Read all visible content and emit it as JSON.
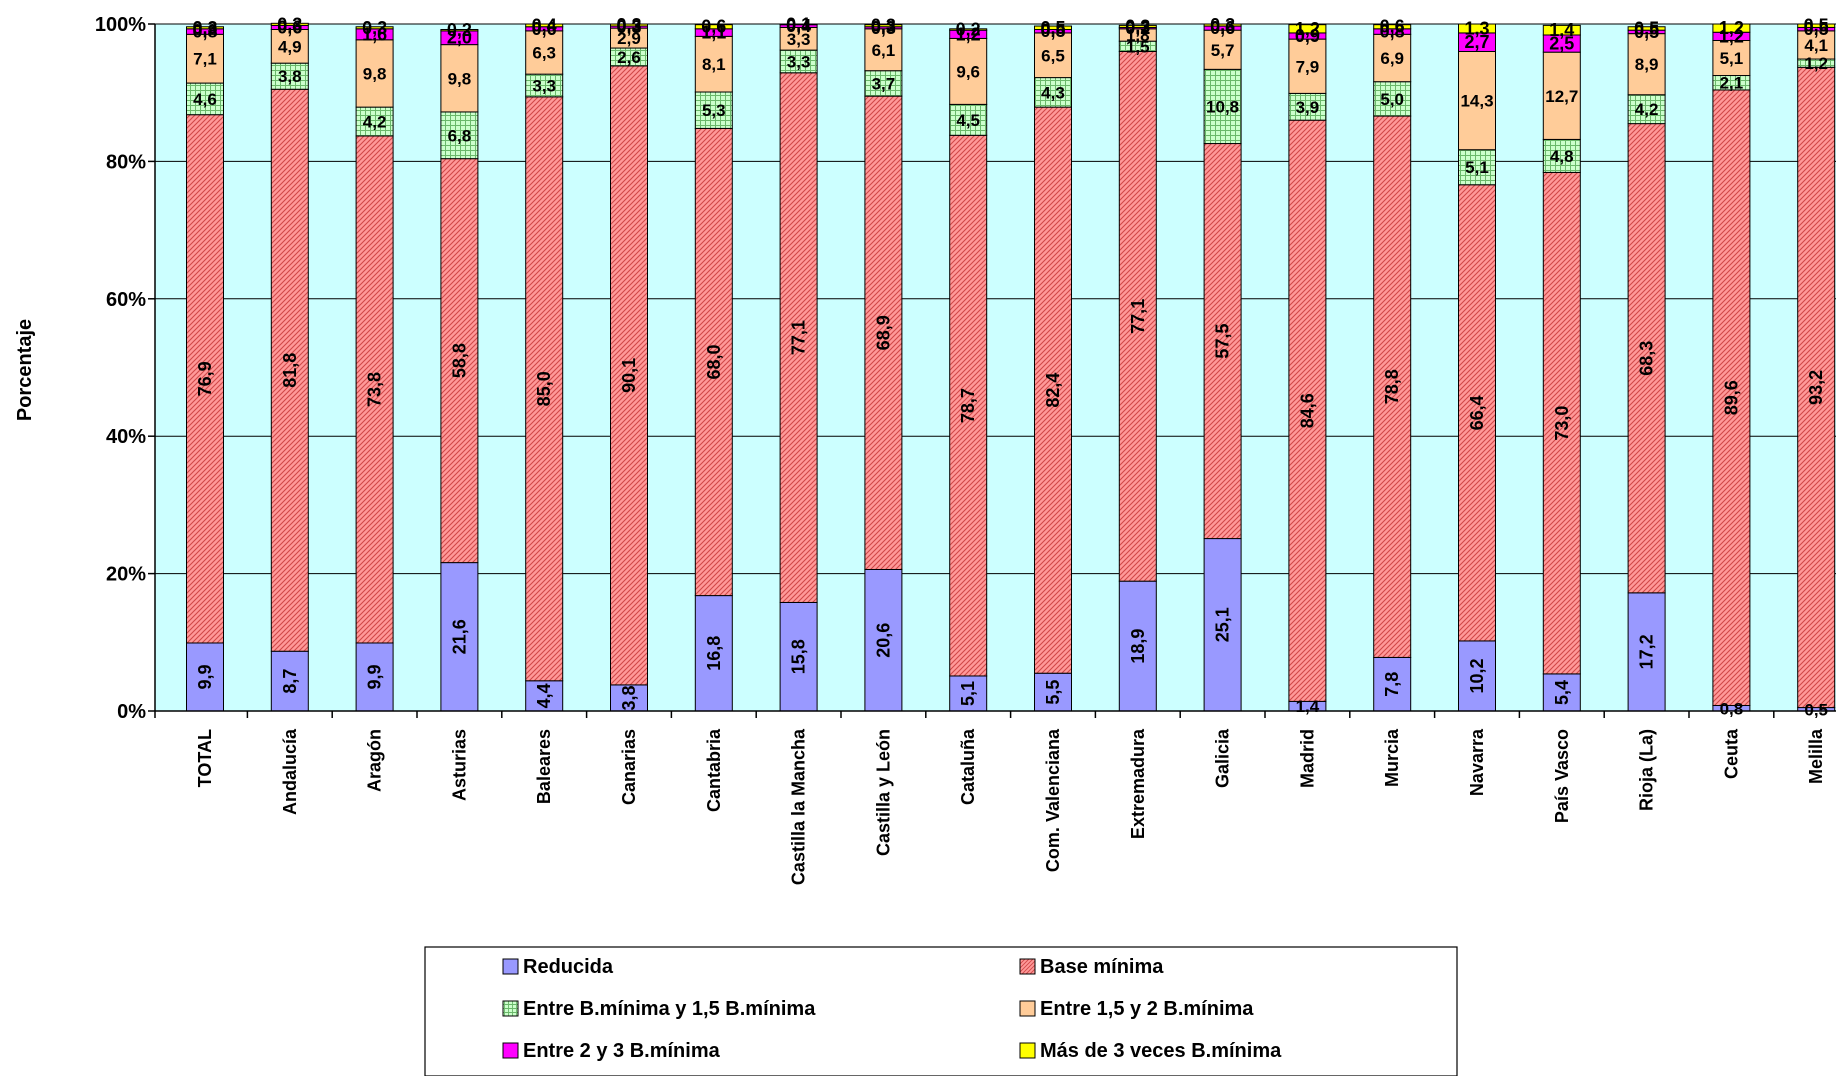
{
  "chart_data": {
    "type": "bar",
    "stacked": "percent",
    "title": "",
    "xlabel": "",
    "ylabel": "Porcentaje",
    "ylim": [
      0,
      100
    ],
    "y_ticks": [
      "0%",
      "20%",
      "40%",
      "60%",
      "80%",
      "100%"
    ],
    "grid": true,
    "legend_position": "bottom",
    "plot_background": "#CCFFFF",
    "categories": [
      "TOTAL",
      "Andalucía",
      "Aragón",
      "Asturias",
      "Baleares",
      "Canarias",
      "Cantabria",
      "Castilla la Mancha",
      "Castilla y León",
      "Cataluña",
      "Com. Valenciana",
      "Extremadura",
      "Galicia",
      "Madrid",
      "Murcia",
      "Navarra",
      "País Vasco",
      "Rioja (La)",
      "Ceuta",
      "Melilla"
    ],
    "series": [
      {
        "name": "Reducida",
        "color": "#9999FF",
        "pattern": "none",
        "values": [
          9.9,
          8.7,
          9.9,
          21.6,
          4.4,
          3.8,
          16.8,
          15.8,
          20.6,
          5.1,
          5.5,
          18.9,
          25.1,
          1.4,
          7.8,
          10.2,
          5.4,
          17.2,
          0.8,
          0.5
        ],
        "labels": [
          "9,9",
          "8,7",
          "9,9",
          "21,6",
          "4,4",
          "3,8",
          "16,8",
          "15,8",
          "20,6",
          "5,1",
          "5,5",
          "18,9",
          "25,1",
          "1,4",
          "7,8",
          "10,2",
          "5,4",
          "17,2",
          "0,8",
          "0,5"
        ]
      },
      {
        "name": "Base mínima",
        "color": "#FF9999",
        "pattern": "diagonal",
        "values": [
          76.9,
          81.8,
          73.8,
          58.8,
          85.0,
          90.1,
          68.0,
          77.1,
          68.9,
          78.7,
          82.4,
          77.1,
          57.5,
          84.6,
          78.8,
          66.4,
          73.0,
          68.3,
          89.6,
          93.2
        ],
        "labels": [
          "76,9",
          "81,8",
          "73,8",
          "58,8",
          "85,0",
          "90,1",
          "68,0",
          "77,1",
          "68,9",
          "78,7",
          "82,4",
          "77,1",
          "57,5",
          "84,6",
          "78,8",
          "66,4",
          "73,0",
          "68,3",
          "89,6",
          "93,2"
        ]
      },
      {
        "name": "Entre B.mínima y 1,5 B.mínima",
        "color": "#CCFFCC",
        "pattern": "grid",
        "values": [
          4.6,
          3.8,
          4.2,
          6.8,
          3.3,
          2.6,
          5.3,
          3.3,
          3.7,
          4.5,
          4.3,
          1.5,
          10.8,
          3.9,
          5.0,
          5.1,
          4.8,
          4.2,
          2.1,
          1.2
        ],
        "labels": [
          "4,6",
          "3,8",
          "4,2",
          "6,8",
          "3,3",
          "2,6",
          "5,3",
          "3,3",
          "3,7",
          "4,5",
          "4,3",
          "1,5",
          "10,8",
          "3,9",
          "5,0",
          "5,1",
          "4,8",
          "4,2",
          "2,1",
          "1,2"
        ]
      },
      {
        "name": "Entre 1,5 y 2 B.mínima",
        "color": "#FFCC99",
        "pattern": "none",
        "values": [
          7.1,
          4.9,
          9.8,
          9.8,
          6.3,
          2.9,
          8.1,
          3.3,
          6.1,
          9.6,
          6.5,
          1.8,
          5.7,
          7.9,
          6.9,
          14.3,
          12.7,
          8.9,
          5.1,
          4.1
        ],
        "labels": [
          "7,1",
          "4,9",
          "9,8",
          "9,8",
          "6,3",
          "2,9",
          "8,1",
          "3,3",
          "6,1",
          "9,6",
          "6,5",
          "1,8",
          "5,7",
          "7,9",
          "6,9",
          "14,3",
          "12,7",
          "8,9",
          "5,1",
          "4,1"
        ]
      },
      {
        "name": "Entre 2 y 3 B.mínima",
        "color": "#FF00FF",
        "pattern": "none",
        "values": [
          0.8,
          0.6,
          1.6,
          2.0,
          0.6,
          0.3,
          1.1,
          0.4,
          0.3,
          1.2,
          0.5,
          0.2,
          0.6,
          0.9,
          0.8,
          2.7,
          2.5,
          0.5,
          1.2,
          0.5
        ],
        "labels": [
          "0,8",
          "0,6",
          "1,6",
          "2,0",
          "0,6",
          "0,3",
          "1,1",
          "0,4",
          "0,3",
          "1,2",
          "0,5",
          "0,2",
          "0,6",
          "0,9",
          "0,8",
          "2,7",
          "2,5",
          "0,5",
          "1,2",
          "0,5"
        ]
      },
      {
        "name": "Más de 3 veces B.mínima",
        "color": "#FFFF00",
        "pattern": "none",
        "values": [
          0.3,
          0.3,
          0.3,
          0.2,
          0.4,
          0.3,
          0.6,
          0.1,
          0.3,
          0.2,
          0.5,
          0.3,
          0.3,
          1.2,
          0.6,
          1.3,
          1.4,
          0.5,
          1.2,
          0.5
        ],
        "labels": [
          "0,3",
          "0,3",
          "0,3",
          "0,2",
          "0,4",
          "0,3",
          "0,6",
          "0,1",
          "0,3",
          "0,2",
          "0,5",
          "0,3",
          "0,3",
          "1,2",
          "0,6",
          "1,3",
          "1,4",
          "0,5",
          "1,2",
          "0,5"
        ]
      }
    ]
  }
}
